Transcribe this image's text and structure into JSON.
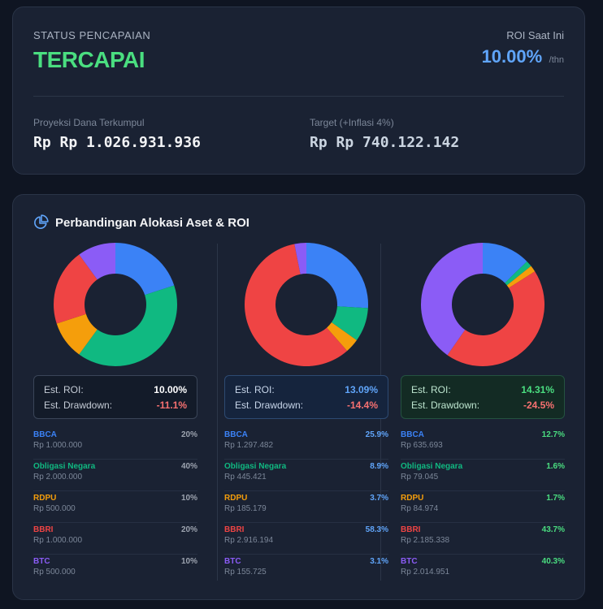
{
  "status": {
    "label": "STATUS PENCAPAIAN",
    "value": "TERCAPAI",
    "roi_label": "ROI Saat Ini",
    "roi_value": "10.00%",
    "roi_unit": "/thn",
    "projection_label": "Proyeksi Dana Terkumpul",
    "projection_value": "Rp Rp 1.026.931.936",
    "target_label": "Target (+Inflasi 4%)",
    "target_value": "Rp Rp 740.122.142"
  },
  "allocation": {
    "title": "Perbandingan Alokasi Aset & ROI",
    "roi_label": "Est. ROI:",
    "drawdown_label": "Est. Drawdown:",
    "colors": {
      "BBCA": "#3b82f6",
      "Obligasi Negara": "#10b981",
      "RDPU": "#f59e0b",
      "BBRI": "#ef4444",
      "BTC": "#8b5cf6"
    },
    "portfolios": [
      {
        "roi": "10.00%",
        "drawdown": "-11.1%",
        "assets": [
          {
            "name": "BBCA",
            "amount": "Rp 1.000.000",
            "pct": "20%",
            "value": 20
          },
          {
            "name": "Obligasi Negara",
            "amount": "Rp 2.000.000",
            "pct": "40%",
            "value": 40
          },
          {
            "name": "RDPU",
            "amount": "Rp 500.000",
            "pct": "10%",
            "value": 10
          },
          {
            "name": "BBRI",
            "amount": "Rp 1.000.000",
            "pct": "20%",
            "value": 20
          },
          {
            "name": "BTC",
            "amount": "Rp 500.000",
            "pct": "10%",
            "value": 10
          }
        ]
      },
      {
        "roi": "13.09%",
        "drawdown": "-14.4%",
        "assets": [
          {
            "name": "BBCA",
            "amount": "Rp 1.297.482",
            "pct": "25.9%",
            "value": 25.9
          },
          {
            "name": "Obligasi Negara",
            "amount": "Rp 445.421",
            "pct": "8.9%",
            "value": 8.9
          },
          {
            "name": "RDPU",
            "amount": "Rp 185.179",
            "pct": "3.7%",
            "value": 3.7
          },
          {
            "name": "BBRI",
            "amount": "Rp 2.916.194",
            "pct": "58.3%",
            "value": 58.3
          },
          {
            "name": "BTC",
            "amount": "Rp 155.725",
            "pct": "3.1%",
            "value": 3.1
          }
        ]
      },
      {
        "roi": "14.31%",
        "drawdown": "-24.5%",
        "assets": [
          {
            "name": "BBCA",
            "amount": "Rp 635.693",
            "pct": "12.7%",
            "value": 12.7
          },
          {
            "name": "Obligasi Negara",
            "amount": "Rp 79.045",
            "pct": "1.6%",
            "value": 1.6
          },
          {
            "name": "RDPU",
            "amount": "Rp 84.974",
            "pct": "1.7%",
            "value": 1.7
          },
          {
            "name": "BBRI",
            "amount": "Rp 2.185.338",
            "pct": "43.7%",
            "value": 43.7
          },
          {
            "name": "BTC",
            "amount": "Rp 2.014.951",
            "pct": "40.3%",
            "value": 40.3
          }
        ]
      }
    ]
  }
}
